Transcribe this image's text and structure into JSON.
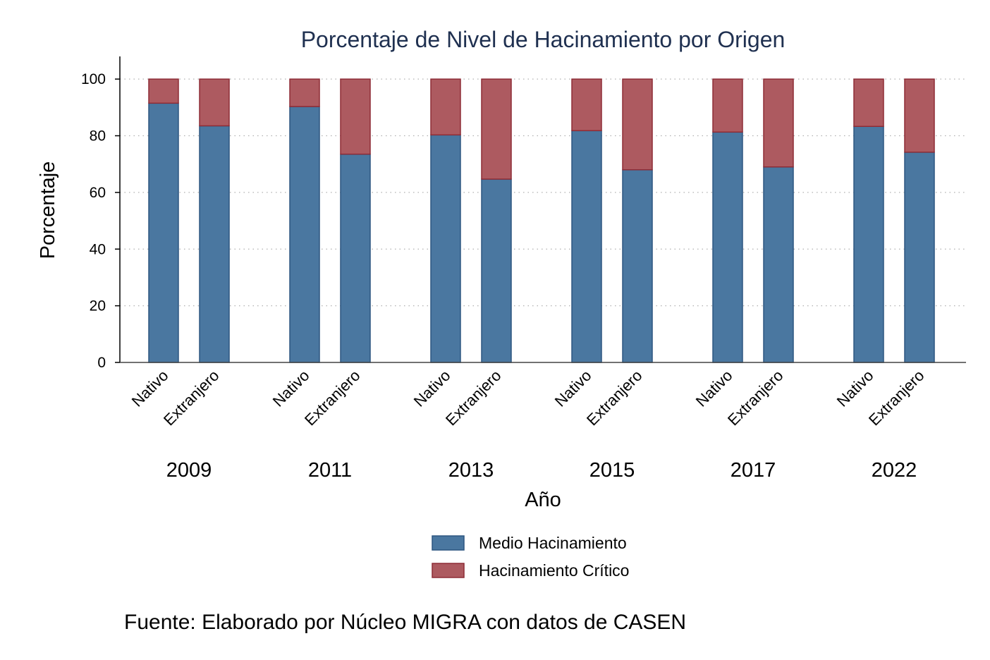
{
  "chart_data": {
    "type": "bar",
    "stacked": true,
    "title": "Porcentaje de Nivel de Hacinamiento por Origen",
    "xlabel": "Año",
    "ylabel": "Porcentaje",
    "ylim": [
      0,
      108
    ],
    "yticks": [
      0,
      20,
      40,
      60,
      80,
      100
    ],
    "grid": "horizontal-dotted",
    "groups": [
      "2009",
      "2011",
      "2013",
      "2015",
      "2017",
      "2022"
    ],
    "categories": [
      "Nativo",
      "Extranjero"
    ],
    "series": [
      {
        "name": "Medio Hacinamiento",
        "color": "#4a77a0",
        "edge": "#2d5780",
        "values": [
          [
            91.5,
            83.5
          ],
          [
            90.3,
            73.5
          ],
          [
            80.3,
            64.7
          ],
          [
            81.8,
            68.0
          ],
          [
            81.3,
            69.0
          ],
          [
            83.3,
            74.2
          ]
        ]
      },
      {
        "name": "Hacinamiento Crítico",
        "color": "#ad5a60",
        "edge": "#8e2c36",
        "values": [
          [
            8.5,
            16.5
          ],
          [
            9.7,
            26.5
          ],
          [
            19.7,
            35.3
          ],
          [
            18.2,
            32.0
          ],
          [
            18.7,
            31.0
          ],
          [
            16.7,
            25.8
          ]
        ]
      }
    ],
    "legend": "bottom",
    "source": "Fuente: Elaborado por Núcleo MIGRA con datos de CASEN"
  }
}
